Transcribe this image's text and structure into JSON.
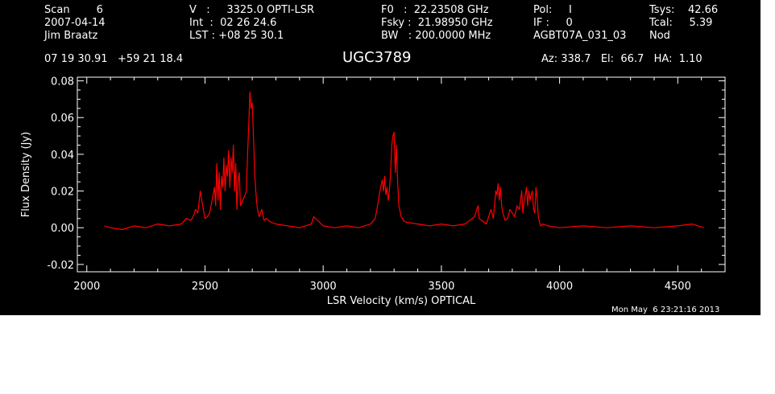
{
  "header": {
    "col1": [
      "Scan        6",
      "2007-04-14",
      "Jim Braatz"
    ],
    "col2": [
      "V   :     3325.0 OPTI-LSR",
      "Int  :  02 26 24.6",
      "LST : +08 25 30.1"
    ],
    "col3": [
      "F0   :  22.23508 GHz",
      "Fsky :  21.98950 GHz",
      "BW   : 200.0000 MHz"
    ],
    "col4": [
      "Pol:     I",
      "IF :     0",
      "AGBT07A_031_03"
    ],
    "col5": [
      "Tsys:    42.66",
      "Tcal:     5.39",
      "Nod"
    ],
    "coords": "07 19 30.91   +59 21 18.4",
    "source": "UGC3789",
    "azelha": "Az: 338.7   El:  66.7   HA:  1.10"
  },
  "footer": {
    "timestamp": "Mon May  6 23:21:16 2013"
  },
  "colors": {
    "background": "#000000",
    "foreground": "#ffffff",
    "trace": "#ff0000"
  },
  "chart_data": {
    "type": "line",
    "xlabel": "LSR Velocity (km/s) OPTICAL",
    "ylabel": "Flux Density (Jy)",
    "xlim": [
      1960,
      4700
    ],
    "ylim": [
      -0.024,
      0.082
    ],
    "xticks": [
      2000,
      2500,
      3000,
      3500,
      4000,
      4500
    ],
    "xtick_labels": [
      "2000",
      "2500",
      "3000",
      "3500",
      "4000",
      "4500"
    ],
    "yticks": [
      -0.02,
      0.0,
      0.02,
      0.04,
      0.06,
      0.08
    ],
    "ytick_labels": [
      "-0.02",
      "0.00",
      "0.02",
      "0.04",
      "0.06",
      "0.08"
    ],
    "grid": false,
    "series": [
      {
        "color": "#ff0000",
        "x": [
          2075,
          2100,
          2150,
          2200,
          2250,
          2300,
          2350,
          2400,
          2420,
          2440,
          2450,
          2460,
          2470,
          2480,
          2490,
          2500,
          2510,
          2520,
          2530,
          2540,
          2545,
          2550,
          2555,
          2560,
          2565,
          2570,
          2575,
          2580,
          2585,
          2590,
          2595,
          2600,
          2605,
          2610,
          2615,
          2620,
          2625,
          2630,
          2635,
          2640,
          2645,
          2650,
          2660,
          2670,
          2675,
          2680,
          2685,
          2690,
          2695,
          2700,
          2705,
          2710,
          2715,
          2720,
          2725,
          2730,
          2740,
          2750,
          2760,
          2780,
          2800,
          2850,
          2900,
          2950,
          2960,
          3000,
          3050,
          3100,
          3150,
          3200,
          3220,
          3230,
          3240,
          3250,
          3255,
          3260,
          3265,
          3270,
          3275,
          3280,
          3285,
          3290,
          3295,
          3300,
          3305,
          3310,
          3315,
          3320,
          3330,
          3340,
          3350,
          3400,
          3450,
          3500,
          3550,
          3600,
          3620,
          3640,
          3650,
          3655,
          3660,
          3670,
          3680,
          3690,
          3700,
          3710,
          3720,
          3730,
          3735,
          3740,
          3745,
          3750,
          3755,
          3760,
          3765,
          3770,
          3780,
          3790,
          3800,
          3810,
          3820,
          3830,
          3835,
          3840,
          3845,
          3850,
          3855,
          3860,
          3865,
          3870,
          3875,
          3880,
          3885,
          3890,
          3895,
          3900,
          3905,
          3910,
          3915,
          3920,
          3930,
          3950,
          4000,
          4100,
          4200,
          4300,
          4400,
          4500,
          4560,
          4610
        ],
        "y": [
          0.001,
          0.0,
          -0.001,
          0.001,
          0.0,
          0.002,
          0.001,
          0.002,
          0.005,
          0.004,
          0.006,
          0.01,
          0.008,
          0.02,
          0.012,
          0.005,
          0.006,
          0.008,
          0.015,
          0.022,
          0.012,
          0.035,
          0.015,
          0.03,
          0.01,
          0.028,
          0.022,
          0.038,
          0.02,
          0.034,
          0.028,
          0.042,
          0.022,
          0.038,
          0.03,
          0.045,
          0.02,
          0.035,
          0.01,
          0.025,
          0.03,
          0.012,
          0.015,
          0.018,
          0.02,
          0.04,
          0.055,
          0.074,
          0.065,
          0.068,
          0.05,
          0.03,
          0.02,
          0.012,
          0.008,
          0.006,
          0.01,
          0.004,
          0.005,
          0.003,
          0.002,
          0.001,
          0.0,
          0.002,
          0.006,
          0.001,
          0.0,
          0.001,
          0.0,
          0.002,
          0.005,
          0.012,
          0.02,
          0.026,
          0.02,
          0.028,
          0.018,
          0.022,
          0.015,
          0.02,
          0.03,
          0.045,
          0.05,
          0.052,
          0.03,
          0.045,
          0.025,
          0.012,
          0.006,
          0.004,
          0.003,
          0.002,
          0.001,
          0.002,
          0.001,
          0.002,
          0.004,
          0.006,
          0.01,
          0.012,
          0.005,
          0.004,
          0.003,
          0.002,
          0.006,
          0.01,
          0.005,
          0.02,
          0.018,
          0.024,
          0.015,
          0.022,
          0.012,
          0.008,
          0.006,
          0.004,
          0.005,
          0.01,
          0.008,
          0.006,
          0.012,
          0.01,
          0.015,
          0.02,
          0.008,
          0.015,
          0.018,
          0.022,
          0.012,
          0.02,
          0.015,
          0.018,
          0.02,
          0.01,
          0.008,
          0.022,
          0.016,
          0.006,
          0.003,
          0.001,
          0.002,
          0.001,
          0.0,
          0.001,
          0.0,
          0.001,
          0.0,
          0.001,
          0.002,
          0.0
        ]
      }
    ]
  }
}
